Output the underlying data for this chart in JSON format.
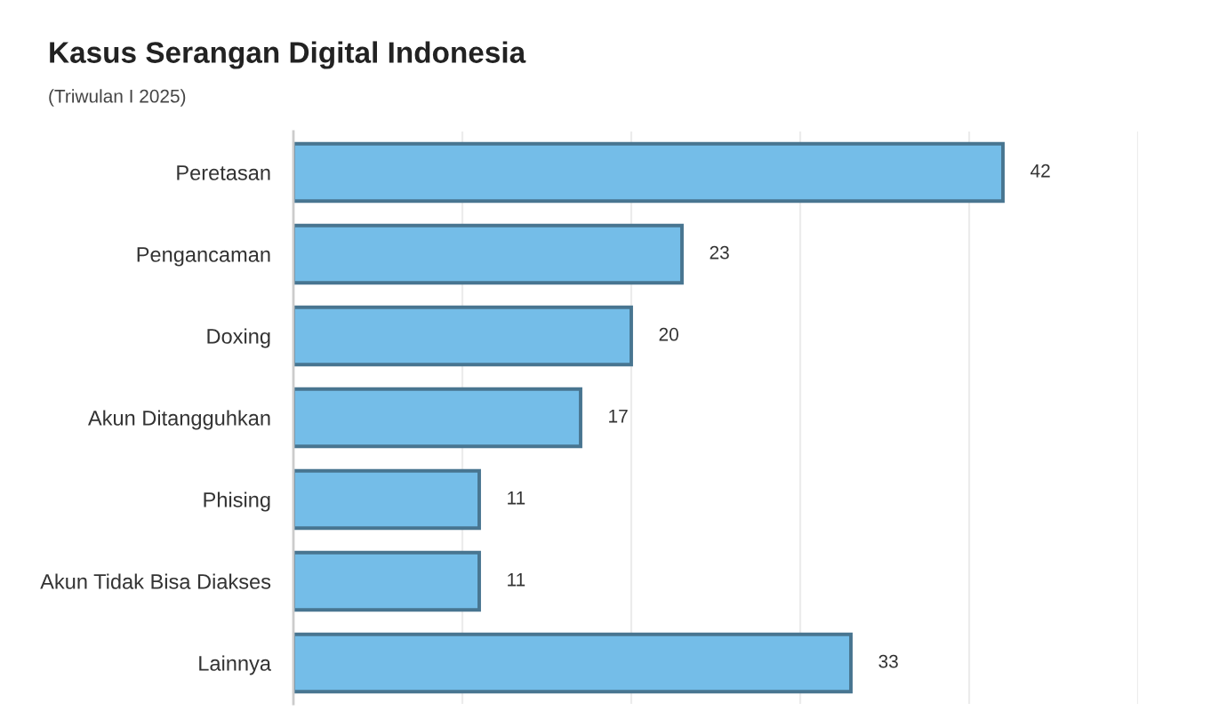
{
  "chart_data": {
    "type": "bar",
    "orientation": "horizontal",
    "title": "Kasus Serangan Digital Indonesia",
    "subtitle": "(Triwulan I 2025)",
    "categories": [
      "Peretasan",
      "Pengancaman",
      "Doxing",
      "Akun Ditangguhkan",
      "Phising",
      "Akun Tidak Bisa Diakses",
      "Lainnya"
    ],
    "values": [
      42,
      23,
      20,
      17,
      11,
      11,
      33
    ],
    "color": "#74bde8",
    "xlim": [
      0,
      50
    ],
    "xticks": [
      {
        "value": 0,
        "label": null
      },
      {
        "value": 10,
        "label": null
      },
      {
        "value": 20,
        "label": null
      },
      {
        "value": 30,
        "label": null
      },
      {
        "value": 40,
        "label": null
      },
      {
        "value": 50,
        "label": null
      }
    ],
    "tick_labels": "y",
    "grid": "x",
    "data_labels": true,
    "legend": false
  }
}
